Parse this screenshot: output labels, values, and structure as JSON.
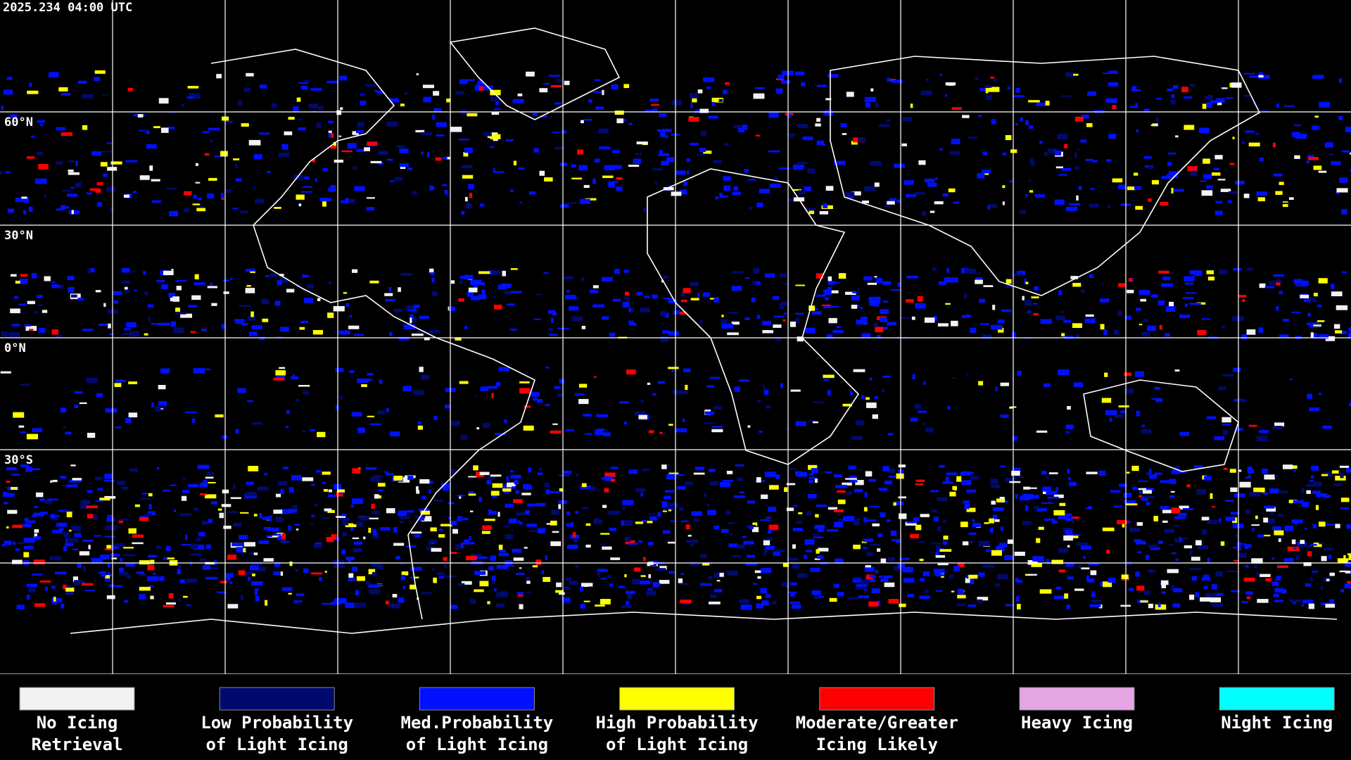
{
  "timestamp": "2025.234 04:00 UTC",
  "latitude_labels": [
    "60°N",
    "30°N",
    "0°N",
    "30°S"
  ],
  "legend": [
    {
      "lines": [
        "No Icing",
        "Retrieval"
      ],
      "color": "#f2f2f2"
    },
    {
      "lines": [
        "Low Probability",
        "of Light Icing"
      ],
      "color": "#000a6e"
    },
    {
      "lines": [
        "Med.Probability",
        "of Light Icing"
      ],
      "color": "#0010ff"
    },
    {
      "lines": [
        "High Probability",
        "of Light Icing"
      ],
      "color": "#ffff00"
    },
    {
      "lines": [
        "Moderate/Greater",
        "Icing Likely"
      ],
      "color": "#ff0000"
    },
    {
      "lines": [
        "Heavy Icing"
      ],
      "color": "#e6a6e6"
    },
    {
      "lines": [
        "Night Icing"
      ],
      "color": "#00ffff"
    }
  ]
}
